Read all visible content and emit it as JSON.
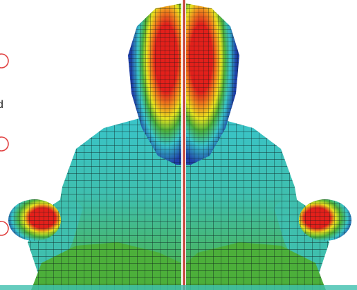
{
  "figure": {
    "left_panel_marker": "d",
    "colors": {
      "background": "#ffffff",
      "divider": "#c0392b",
      "mesh_line": "#0b1a1a",
      "low_blue": "#1f3fa8",
      "cyan": "#39c4c9",
      "teal": "#3fbfae",
      "green": "#4caf3a",
      "yellow": "#e7e21f",
      "orange": "#f08a1d",
      "high_red": "#e3201b",
      "marker_ring": "#e04040"
    }
  }
}
